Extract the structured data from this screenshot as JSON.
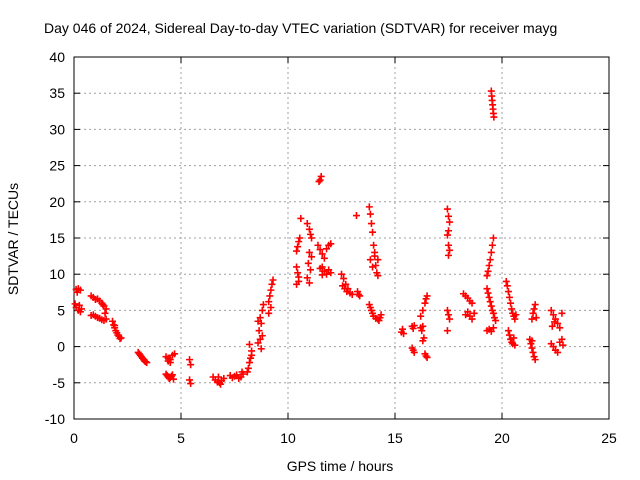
{
  "chart_data": {
    "type": "scatter",
    "title": "Day 046 of 2024, Sidereal Day-to-day VTEC variation (SDTVAR) for receiver mayg",
    "xlabel": "GPS time / hours",
    "ylabel": "SDTVAR / TECUs",
    "xlim": [
      0,
      25
    ],
    "ylim": [
      -10,
      40
    ],
    "xticks": [
      0,
      5,
      10,
      15,
      20,
      25
    ],
    "yticks": [
      -10,
      -5,
      0,
      5,
      10,
      15,
      20,
      25,
      30,
      35,
      40
    ],
    "grid": true,
    "marker": "plus",
    "color": "#ff0000",
    "series": [
      {
        "name": "SDTVAR",
        "points": [
          [
            0.1,
            7.9
          ],
          [
            0.2,
            8.0
          ],
          [
            0.3,
            7.8
          ],
          [
            0.15,
            7.5
          ],
          [
            0.25,
            5.7
          ],
          [
            0.1,
            5.4
          ],
          [
            0.2,
            5.0
          ],
          [
            0.3,
            4.8
          ],
          [
            0.05,
            5.9
          ],
          [
            0.35,
            5.2
          ],
          [
            0.8,
            7.0
          ],
          [
            0.9,
            6.8
          ],
          [
            1.0,
            6.5
          ],
          [
            1.1,
            6.6
          ],
          [
            1.2,
            6.3
          ],
          [
            1.3,
            6.0
          ],
          [
            1.4,
            5.6
          ],
          [
            1.5,
            5.2
          ],
          [
            1.45,
            4.6
          ],
          [
            1.35,
            5.8
          ],
          [
            0.8,
            4.3
          ],
          [
            0.9,
            4.4
          ],
          [
            1.0,
            4.2
          ],
          [
            1.1,
            4.0
          ],
          [
            1.2,
            3.9
          ],
          [
            1.3,
            3.7
          ],
          [
            1.4,
            3.6
          ],
          [
            1.5,
            3.8
          ],
          [
            1.8,
            3.5
          ],
          [
            1.85,
            3.0
          ],
          [
            1.9,
            2.6
          ],
          [
            1.95,
            2.2
          ],
          [
            2.0,
            1.9
          ],
          [
            2.05,
            1.6
          ],
          [
            2.1,
            1.4
          ],
          [
            2.15,
            1.1
          ],
          [
            2.2,
            1.2
          ],
          [
            1.9,
            2.9
          ],
          [
            3.0,
            -0.8
          ],
          [
            3.05,
            -1.0
          ],
          [
            3.1,
            -1.2
          ],
          [
            3.15,
            -1.4
          ],
          [
            3.2,
            -1.6
          ],
          [
            3.25,
            -1.8
          ],
          [
            3.3,
            -2.0
          ],
          [
            3.35,
            -2.1
          ],
          [
            3.4,
            -2.2
          ],
          [
            4.3,
            -1.4
          ],
          [
            4.4,
            -1.6
          ],
          [
            4.5,
            -1.8
          ],
          [
            4.6,
            -1.2
          ],
          [
            4.7,
            -1.0
          ],
          [
            4.4,
            -2.0
          ],
          [
            4.5,
            -2.2
          ],
          [
            4.3,
            -3.8
          ],
          [
            4.35,
            -4.0
          ],
          [
            4.4,
            -4.2
          ],
          [
            4.45,
            -4.4
          ],
          [
            4.5,
            -4.3
          ],
          [
            4.55,
            -4.1
          ],
          [
            4.6,
            -3.9
          ],
          [
            4.65,
            -4.5
          ],
          [
            5.4,
            -1.8
          ],
          [
            5.45,
            -2.5
          ],
          [
            5.4,
            -4.6
          ],
          [
            5.45,
            -5.1
          ],
          [
            6.5,
            -4.2
          ],
          [
            6.6,
            -4.6
          ],
          [
            6.7,
            -4.9
          ],
          [
            6.8,
            -5.0
          ],
          [
            6.9,
            -4.7
          ],
          [
            7.0,
            -4.4
          ],
          [
            6.75,
            -4.2
          ],
          [
            6.85,
            -5.2
          ],
          [
            7.3,
            -4.0
          ],
          [
            7.4,
            -4.3
          ],
          [
            7.5,
            -4.1
          ],
          [
            7.6,
            -3.9
          ],
          [
            7.7,
            -4.4
          ],
          [
            7.8,
            -4.2
          ],
          [
            7.9,
            -3.8
          ],
          [
            7.85,
            -3.5
          ],
          [
            8.1,
            -3.5
          ],
          [
            8.15,
            -3.0
          ],
          [
            8.2,
            -2.2
          ],
          [
            8.25,
            -1.6
          ],
          [
            8.3,
            -0.6
          ],
          [
            8.2,
            0.3
          ],
          [
            8.3,
            -1.2
          ],
          [
            8.6,
            0.5
          ],
          [
            8.7,
            1.0
          ],
          [
            8.8,
            1.5
          ],
          [
            8.65,
            2.2
          ],
          [
            8.75,
            3.2
          ],
          [
            8.7,
            4.0
          ],
          [
            8.8,
            5.0
          ],
          [
            8.85,
            5.8
          ],
          [
            8.6,
            3.5
          ],
          [
            8.75,
            -0.3
          ],
          [
            9.1,
            6.2
          ],
          [
            9.15,
            7.0
          ],
          [
            9.2,
            7.8
          ],
          [
            9.25,
            8.6
          ],
          [
            9.3,
            9.2
          ],
          [
            9.1,
            4.6
          ],
          [
            9.2,
            5.4
          ],
          [
            10.4,
            13.2
          ],
          [
            10.45,
            13.8
          ],
          [
            10.5,
            14.5
          ],
          [
            10.55,
            15.0
          ],
          [
            10.6,
            17.7
          ],
          [
            10.4,
            11.0
          ],
          [
            10.45,
            10.2
          ],
          [
            10.5,
            9.6
          ],
          [
            10.4,
            8.6
          ],
          [
            10.5,
            9.0
          ],
          [
            10.9,
            17.0
          ],
          [
            11.0,
            16.2
          ],
          [
            11.05,
            15.5
          ],
          [
            11.1,
            15.0
          ],
          [
            11.0,
            13.0
          ],
          [
            11.1,
            12.4
          ],
          [
            10.95,
            11.5
          ],
          [
            11.05,
            10.6
          ],
          [
            10.9,
            9.5
          ],
          [
            11.0,
            8.8
          ],
          [
            11.5,
            23.0
          ],
          [
            11.55,
            23.5
          ],
          [
            11.45,
            22.8
          ],
          [
            11.4,
            14.0
          ],
          [
            11.5,
            13.4
          ],
          [
            11.6,
            12.8
          ],
          [
            11.7,
            12.2
          ],
          [
            11.8,
            13.5
          ],
          [
            11.9,
            14.0
          ],
          [
            12.0,
            14.2
          ],
          [
            11.6,
            11.0
          ],
          [
            11.7,
            10.4
          ],
          [
            11.8,
            10.0
          ],
          [
            11.9,
            10.6
          ],
          [
            12.0,
            10.2
          ],
          [
            11.5,
            10.8
          ],
          [
            11.6,
            9.9
          ],
          [
            12.5,
            10.0
          ],
          [
            12.6,
            9.4
          ],
          [
            12.7,
            8.6
          ],
          [
            12.8,
            8.0
          ],
          [
            12.9,
            7.4
          ],
          [
            13.0,
            7.2
          ],
          [
            12.55,
            8.4
          ],
          [
            12.65,
            8.0
          ],
          [
            12.75,
            7.6
          ],
          [
            13.2,
            18.1
          ],
          [
            13.3,
            7.2
          ],
          [
            13.35,
            7.0
          ],
          [
            13.25,
            7.6
          ],
          [
            13.8,
            19.3
          ],
          [
            13.85,
            18.3
          ],
          [
            13.9,
            17.0
          ],
          [
            13.95,
            15.8
          ],
          [
            14.0,
            14.0
          ],
          [
            14.05,
            12.5
          ],
          [
            14.1,
            11.2
          ],
          [
            14.15,
            10.2
          ],
          [
            14.2,
            9.8
          ],
          [
            13.85,
            12.0
          ],
          [
            13.95,
            11.0
          ],
          [
            14.05,
            13.0
          ],
          [
            14.2,
            12.0
          ],
          [
            13.8,
            5.8
          ],
          [
            13.85,
            5.4
          ],
          [
            13.9,
            5.0
          ],
          [
            13.95,
            4.6
          ],
          [
            14.0,
            4.2
          ],
          [
            14.1,
            3.9
          ],
          [
            14.2,
            3.8
          ],
          [
            14.3,
            4.0
          ],
          [
            14.35,
            4.4
          ],
          [
            14.25,
            3.6
          ],
          [
            15.3,
            2.0
          ],
          [
            15.35,
            2.4
          ],
          [
            15.4,
            1.8
          ],
          [
            15.8,
            2.8
          ],
          [
            15.85,
            2.5
          ],
          [
            15.9,
            2.9
          ],
          [
            15.8,
            -0.2
          ],
          [
            15.85,
            -0.5
          ],
          [
            15.9,
            -0.8
          ],
          [
            16.2,
            2.6
          ],
          [
            16.25,
            2.2
          ],
          [
            16.3,
            2.8
          ],
          [
            16.2,
            4.2
          ],
          [
            16.3,
            5.0
          ],
          [
            16.4,
            6.0
          ],
          [
            16.45,
            6.6
          ],
          [
            16.5,
            7.0
          ],
          [
            16.3,
            0.8
          ],
          [
            16.35,
            1.2
          ],
          [
            16.4,
            -1.0
          ],
          [
            16.45,
            -1.3
          ],
          [
            16.5,
            -1.5
          ],
          [
            17.45,
            19.0
          ],
          [
            17.5,
            18.0
          ],
          [
            17.55,
            17.2
          ],
          [
            17.5,
            16.0
          ],
          [
            17.45,
            15.4
          ],
          [
            17.5,
            14.0
          ],
          [
            17.55,
            13.3
          ],
          [
            17.5,
            12.6
          ],
          [
            17.45,
            5.0
          ],
          [
            17.5,
            4.4
          ],
          [
            17.55,
            3.8
          ],
          [
            17.45,
            2.2
          ],
          [
            18.2,
            7.3
          ],
          [
            18.3,
            7.0
          ],
          [
            18.4,
            6.7
          ],
          [
            18.5,
            6.3
          ],
          [
            18.6,
            6.0
          ],
          [
            18.3,
            4.4
          ],
          [
            18.4,
            4.8
          ],
          [
            18.5,
            4.2
          ],
          [
            18.6,
            3.8
          ],
          [
            18.7,
            4.6
          ],
          [
            19.3,
            9.8
          ],
          [
            19.35,
            10.4
          ],
          [
            19.4,
            11.2
          ],
          [
            19.45,
            12.0
          ],
          [
            19.5,
            13.0
          ],
          [
            19.55,
            14.0
          ],
          [
            19.6,
            15.0
          ],
          [
            19.5,
            35.3
          ],
          [
            19.52,
            34.6
          ],
          [
            19.54,
            34.0
          ],
          [
            19.56,
            33.4
          ],
          [
            19.58,
            32.8
          ],
          [
            19.6,
            32.2
          ],
          [
            19.62,
            31.7
          ],
          [
            19.3,
            8.0
          ],
          [
            19.35,
            7.4
          ],
          [
            19.4,
            6.8
          ],
          [
            19.45,
            6.2
          ],
          [
            19.5,
            5.6
          ],
          [
            19.55,
            5.0
          ],
          [
            19.6,
            4.6
          ],
          [
            19.65,
            4.0
          ],
          [
            19.7,
            3.6
          ],
          [
            19.3,
            2.2
          ],
          [
            19.4,
            2.4
          ],
          [
            19.5,
            2.1
          ],
          [
            19.6,
            2.6
          ],
          [
            20.2,
            9.0
          ],
          [
            20.25,
            8.4
          ],
          [
            20.3,
            7.6
          ],
          [
            20.35,
            6.8
          ],
          [
            20.4,
            6.0
          ],
          [
            20.45,
            5.2
          ],
          [
            20.5,
            4.6
          ],
          [
            20.55,
            4.2
          ],
          [
            20.6,
            3.8
          ],
          [
            20.65,
            4.4
          ],
          [
            20.3,
            2.2
          ],
          [
            20.35,
            1.6
          ],
          [
            20.4,
            1.0
          ],
          [
            20.45,
            0.6
          ],
          [
            20.5,
            0.4
          ],
          [
            20.55,
            1.2
          ],
          [
            20.6,
            0.2
          ],
          [
            21.3,
            1.0
          ],
          [
            21.35,
            0.4
          ],
          [
            21.4,
            -0.2
          ],
          [
            21.45,
            -0.8
          ],
          [
            21.5,
            -1.4
          ],
          [
            21.55,
            -1.8
          ],
          [
            21.4,
            0.8
          ],
          [
            21.4,
            3.8
          ],
          [
            21.45,
            4.6
          ],
          [
            21.5,
            5.2
          ],
          [
            21.55,
            5.8
          ],
          [
            21.6,
            4.0
          ],
          [
            22.3,
            5.0
          ],
          [
            22.4,
            4.4
          ],
          [
            22.5,
            3.8
          ],
          [
            22.6,
            3.2
          ],
          [
            22.7,
            2.6
          ],
          [
            22.8,
            4.6
          ],
          [
            22.35,
            2.8
          ],
          [
            22.45,
            3.4
          ],
          [
            22.3,
            0.4
          ],
          [
            22.4,
            0.0
          ],
          [
            22.5,
            -0.5
          ],
          [
            22.6,
            -0.8
          ],
          [
            22.7,
            0.6
          ],
          [
            22.8,
            1.0
          ],
          [
            22.85,
            0.2
          ]
        ]
      }
    ]
  }
}
